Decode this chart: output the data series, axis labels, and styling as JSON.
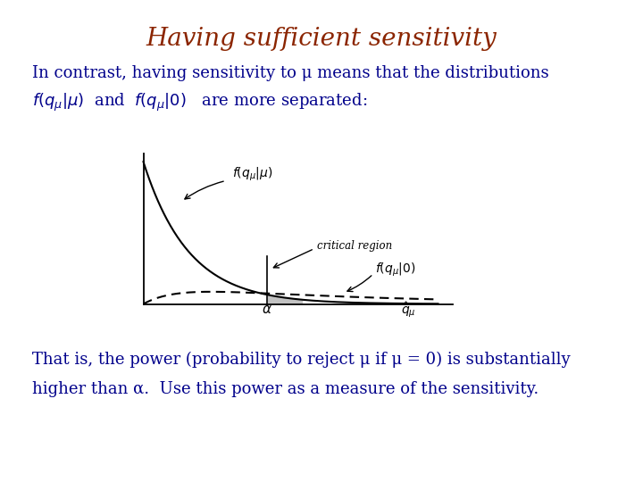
{
  "title": "Having sufficient sensitivity",
  "title_color": "#8B2500",
  "title_fontsize": 20,
  "body_color": "#00008B",
  "body_fontsize": 13,
  "bg_color": "#FFFFFF",
  "bottom_line1": "That is, the power (probability to reject μ if μ = 0) is substantially",
  "bottom_line2": "higher than α.  Use this power as a measure of the sensitivity."
}
